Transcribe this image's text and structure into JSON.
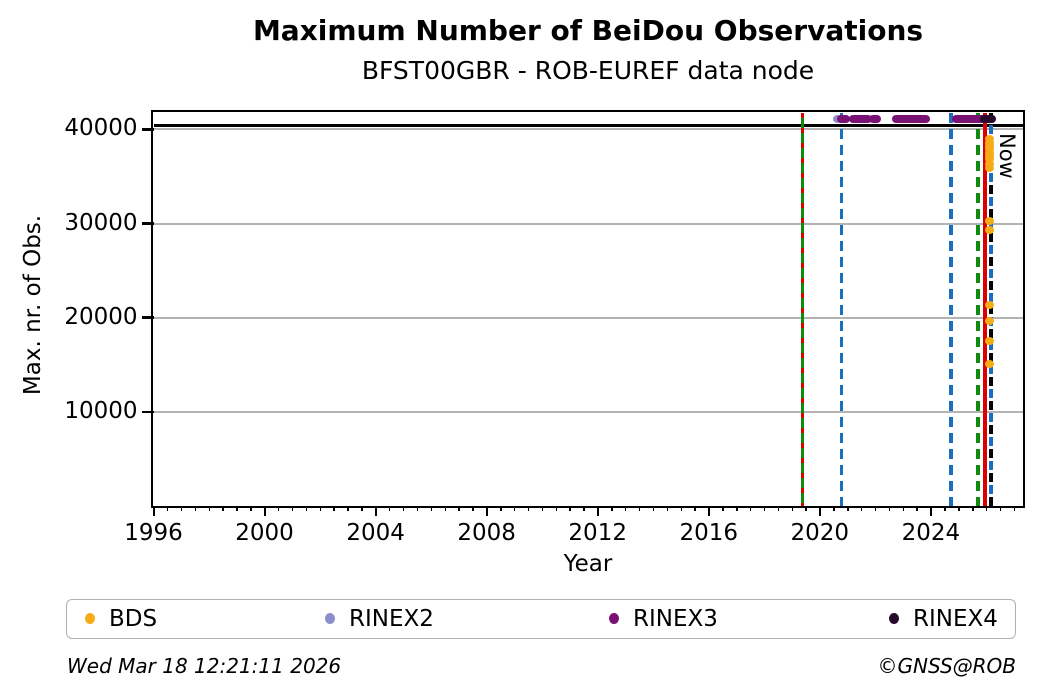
{
  "header": {
    "title": "Maximum Number of BeiDou Observations",
    "subtitle": "BFST00GBR - ROB-EUREF data node"
  },
  "footer": {
    "timestamp": "Wed Mar 18 12:21:11 2026",
    "credit": "©GNSS@ROB"
  },
  "chart_data": {
    "type": "scatter",
    "title": "Maximum Number of BeiDou Observations",
    "subtitle": "BFST00GBR - ROB-EUREF data node",
    "xlabel": "Year",
    "ylabel": "Max. nr. of Obs.",
    "xlim": [
      1996,
      2027.3
    ],
    "ylim": [
      0,
      41800
    ],
    "grid": "horizontal-only",
    "legend_position": "bottom",
    "xticks": {
      "values": [
        1996,
        2000,
        2004,
        2008,
        2012,
        2016,
        2020,
        2024
      ],
      "labels": [
        "1996",
        "2000",
        "2004",
        "2008",
        "2012",
        "2016",
        "2020",
        "2024"
      ],
      "minor_step_years": 0.5
    },
    "yticks": {
      "values": [
        10000,
        20000,
        30000,
        40000
      ],
      "labels": [
        "10000",
        "20000",
        "30000",
        "40000"
      ]
    },
    "hline": {
      "y": 40400,
      "color": "#000000"
    },
    "event_lines": [
      {
        "x": 2019.38,
        "style": "dotted_over_solid",
        "colors": [
          "#0e8b0e",
          "#dd0000"
        ],
        "label": ""
      },
      {
        "x": 2020.78,
        "style": "dashed",
        "colors": [
          "#1a70be"
        ],
        "label": ""
      },
      {
        "x": 2024.73,
        "style": "dashed",
        "colors": [
          "#1a70be"
        ],
        "label": ""
      },
      {
        "x": 2025.7,
        "style": "dashed",
        "colors": [
          "#0e8b0e"
        ],
        "label": ""
      },
      {
        "x": 2025.95,
        "style": "solid",
        "colors": [
          "#dd0000"
        ],
        "label": ""
      },
      {
        "x": 2026.17,
        "style": "dual_dashed",
        "colors": [
          "#000000",
          "#1a70be"
        ],
        "label": "Now"
      }
    ],
    "now_label": "Now",
    "series": [
      {
        "name": "BDS",
        "color": "#f7ac17",
        "points": [
          {
            "x": 2026.1,
            "y": 39000
          },
          {
            "x": 2026.1,
            "y": 38600
          },
          {
            "x": 2026.1,
            "y": 38250
          },
          {
            "x": 2026.1,
            "y": 37900
          },
          {
            "x": 2026.1,
            "y": 37550
          },
          {
            "x": 2026.1,
            "y": 37200
          },
          {
            "x": 2026.1,
            "y": 36850
          },
          {
            "x": 2026.1,
            "y": 36350
          },
          {
            "x": 2026.1,
            "y": 35950
          },
          {
            "x": 2026.1,
            "y": 30300
          },
          {
            "x": 2026.1,
            "y": 29300
          },
          {
            "x": 2026.1,
            "y": 21300
          },
          {
            "x": 2026.1,
            "y": 19600
          },
          {
            "x": 2026.1,
            "y": 17500
          },
          {
            "x": 2026.1,
            "y": 15100
          }
        ],
        "spans": []
      },
      {
        "name": "RINEX2",
        "color": "#8c8cc8",
        "points": [
          {
            "x": 2020.64,
            "y": 41150
          }
        ],
        "spans": []
      },
      {
        "name": "RINEX3",
        "color": "#7a1174",
        "points": [],
        "spans": [
          {
            "x1": 2020.78,
            "x2": 2020.95,
            "y": 41150
          },
          {
            "x1": 2021.18,
            "x2": 2021.72,
            "y": 41150
          },
          {
            "x1": 2021.9,
            "x2": 2022.05,
            "y": 41150
          },
          {
            "x1": 2022.76,
            "x2": 2023.84,
            "y": 41150
          },
          {
            "x1": 2024.92,
            "x2": 2025.92,
            "y": 41150
          }
        ]
      },
      {
        "name": "RINEX4",
        "color": "#26092b",
        "points": [],
        "spans": [
          {
            "x1": 2025.9,
            "x2": 2026.2,
            "y": 41150
          }
        ]
      }
    ],
    "legend": [
      {
        "label": "BDS",
        "color": "#f7ac17"
      },
      {
        "label": "RINEX2",
        "color": "#8c8cc8"
      },
      {
        "label": "RINEX3",
        "color": "#7a1174"
      },
      {
        "label": "RINEX4",
        "color": "#26092b"
      }
    ],
    "colors": {
      "grid": "#b3b3b3",
      "axis": "#000000",
      "event_blue": "#1a70be",
      "event_green": "#0e8b0e",
      "event_red": "#dd0000"
    }
  }
}
